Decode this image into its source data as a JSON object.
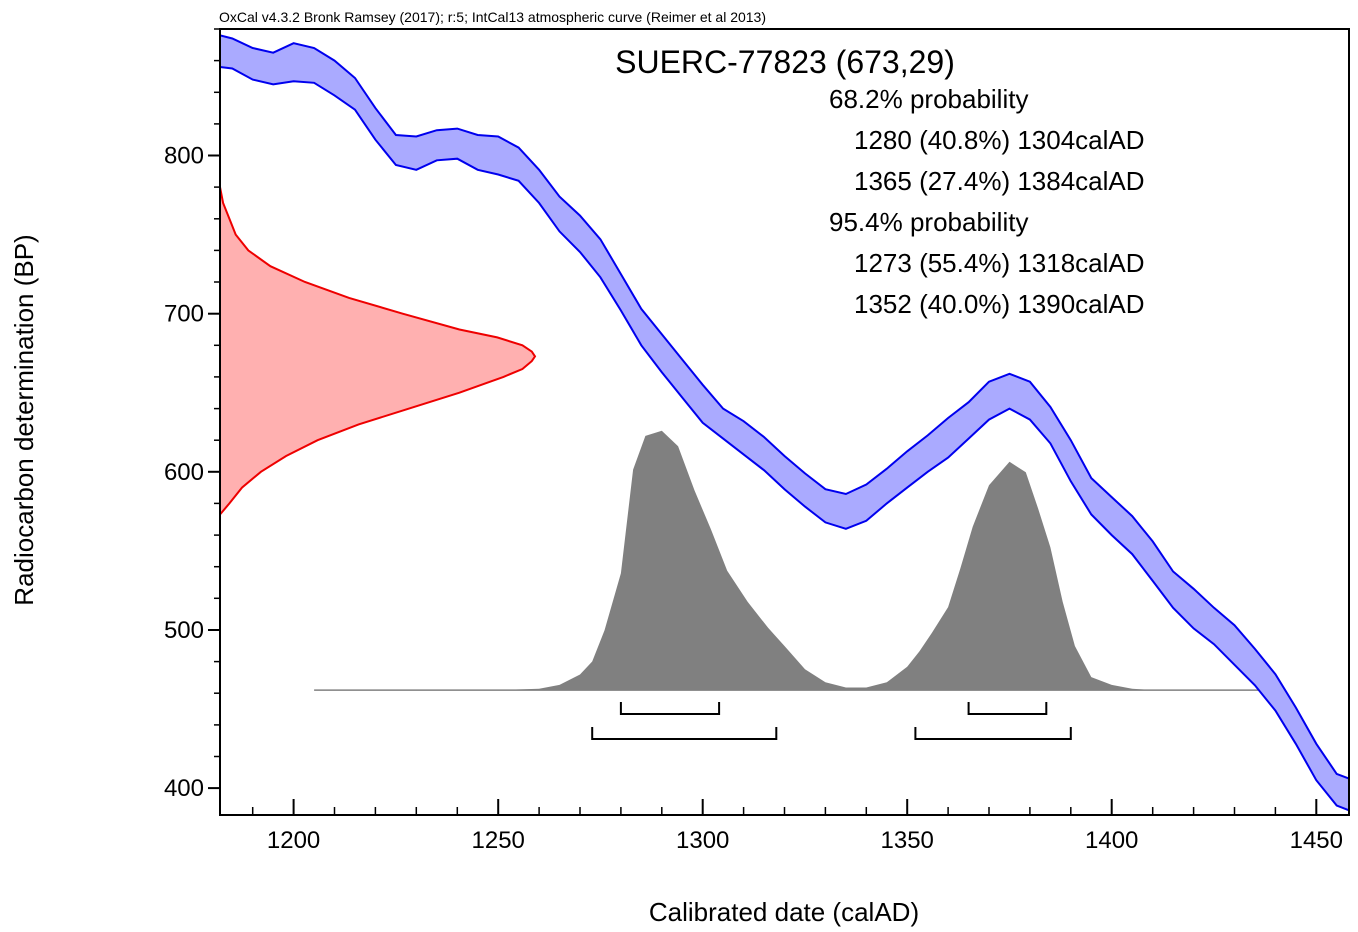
{
  "chart_data": {
    "type": "area",
    "credit": "OxCal v4.3.2 Bronk Ramsey (2017); r:5; IntCal13 atmospheric curve (Reimer et al 2013)",
    "title": "SUERC-77823 (673,29)",
    "xlabel": "Calibrated date (calAD)",
    "ylabel": "Radiocarbon determination (BP)",
    "xlim": [
      1182,
      1458
    ],
    "ylim": [
      383,
      880
    ],
    "xticks": [
      "1200",
      "1250",
      "1300",
      "1350",
      "1400",
      "1450"
    ],
    "yticks": [
      "400",
      "500",
      "600",
      "700",
      "800"
    ],
    "grid": false,
    "probability_text": [
      "68.2% probability",
      "1280 (40.8%) 1304calAD",
      "1365 (27.4%) 1384calAD",
      "95.4% probability",
      "1273 (55.4%) 1318calAD",
      "1352 (40.0%) 1390calAD"
    ],
    "calibration_curve": {
      "x": [
        1182,
        1185,
        1190,
        1195,
        1200,
        1205,
        1210,
        1215,
        1220,
        1225,
        1230,
        1235,
        1240,
        1245,
        1250,
        1255,
        1260,
        1265,
        1270,
        1275,
        1280,
        1285,
        1290,
        1295,
        1300,
        1305,
        1310,
        1315,
        1320,
        1325,
        1330,
        1335,
        1340,
        1345,
        1350,
        1355,
        1360,
        1365,
        1370,
        1375,
        1380,
        1385,
        1390,
        1395,
        1400,
        1405,
        1410,
        1415,
        1420,
        1425,
        1430,
        1435,
        1440,
        1445,
        1450,
        1455,
        1458
      ],
      "upper": [
        876,
        874,
        868,
        865,
        871,
        868,
        860,
        849,
        830,
        813,
        812,
        816,
        817,
        813,
        812,
        805,
        791,
        774,
        762,
        747,
        725,
        703,
        687,
        671,
        655,
        640,
        632,
        622,
        610,
        599,
        589,
        586,
        592,
        602,
        613,
        623,
        634,
        644,
        657,
        662,
        657,
        641,
        620,
        596,
        584,
        572,
        556,
        537,
        526,
        514,
        503,
        488,
        472,
        451,
        428,
        409,
        406
      ],
      "lower": [
        856,
        855,
        848,
        845,
        847,
        846,
        838,
        829,
        810,
        794,
        791,
        797,
        798,
        791,
        788,
        784,
        770,
        752,
        739,
        723,
        702,
        680,
        663,
        647,
        631,
        621,
        611,
        601,
        589,
        578,
        568,
        564,
        569,
        580,
        590,
        600,
        609,
        621,
        633,
        640,
        633,
        618,
        594,
        573,
        560,
        548,
        531,
        514,
        501,
        491,
        478,
        465,
        449,
        428,
        405,
        389,
        386
      ]
    },
    "radiocarbon_distribution": {
      "y": [
        573,
        580,
        590,
        600,
        610,
        620,
        630,
        640,
        650,
        660,
        665,
        670,
        673,
        676,
        680,
        685,
        690,
        700,
        710,
        720,
        730,
        740,
        750,
        760,
        770,
        780
      ],
      "density": [
        0.0,
        0.03,
        0.07,
        0.13,
        0.21,
        0.31,
        0.44,
        0.6,
        0.76,
        0.9,
        0.96,
        0.99,
        1.0,
        0.99,
        0.96,
        0.88,
        0.76,
        0.58,
        0.41,
        0.27,
        0.16,
        0.09,
        0.05,
        0.03,
        0.01,
        0.0
      ]
    },
    "calibrated_distribution": {
      "x": [
        1205,
        1250,
        1260,
        1265,
        1270,
        1273,
        1276,
        1280,
        1283,
        1286,
        1290,
        1294,
        1298,
        1302,
        1306,
        1311,
        1316,
        1320,
        1325,
        1330,
        1335,
        1340,
        1345,
        1350,
        1353,
        1356,
        1360,
        1363,
        1366,
        1370,
        1375,
        1379,
        1382,
        1385,
        1388,
        1391,
        1395,
        1400,
        1405,
        1410,
        1436
      ],
      "density": [
        0.0,
        0.0,
        0.005,
        0.02,
        0.06,
        0.11,
        0.23,
        0.45,
        0.85,
        0.98,
        1.0,
        0.94,
        0.77,
        0.62,
        0.46,
        0.34,
        0.24,
        0.17,
        0.08,
        0.03,
        0.01,
        0.01,
        0.03,
        0.09,
        0.15,
        0.22,
        0.32,
        0.47,
        0.63,
        0.79,
        0.88,
        0.84,
        0.7,
        0.55,
        0.34,
        0.17,
        0.05,
        0.02,
        0.005,
        0.0,
        0.0
      ]
    },
    "ranges_68": [
      [
        1280,
        1304
      ],
      [
        1365,
        1384
      ]
    ],
    "ranges_95": [
      [
        1273,
        1318
      ],
      [
        1352,
        1390
      ]
    ],
    "colors": {
      "curve_fill": "#aaaaff",
      "curve_line": "#0000ee",
      "rc_fill": "#ffb0b0",
      "rc_line": "#ee0000",
      "cal_fill": "#808080",
      "axis": "#000000"
    }
  }
}
